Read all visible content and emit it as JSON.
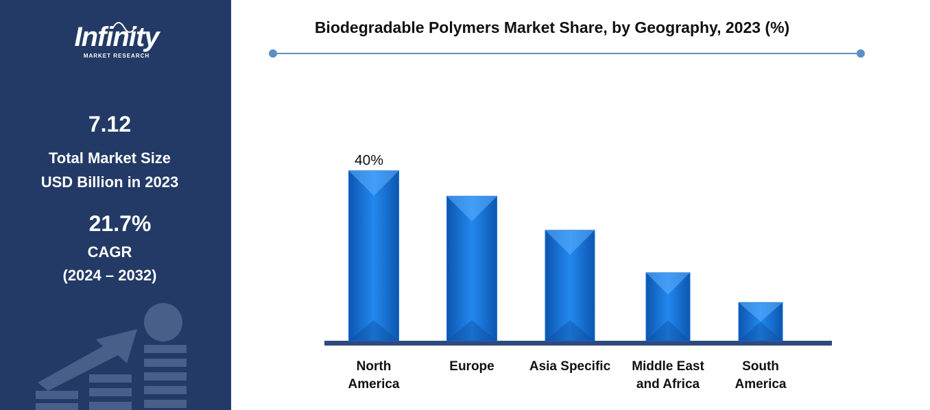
{
  "sidebar": {
    "logo": "Infinity",
    "logo_tagline": "MARKET RESEARCH",
    "market_size": "7.12",
    "market_size_label": "Total Market Size",
    "market_size_unit": "USD Billion in 2023",
    "cagr": "21.7%",
    "cagr_label": "CAGR",
    "cagr_period": "(2024 – 2032)"
  },
  "chart_data": {
    "type": "bar",
    "title": "Biodegradable Polymers Market Share, by Geography, 2023 (%)",
    "categories": [
      "North America",
      "Europe",
      "Asia Specific",
      "Middle East and Africa",
      "South America"
    ],
    "values": [
      40,
      34,
      26,
      16,
      9
    ],
    "value_labels": [
      "40%",
      null,
      null,
      null,
      null
    ],
    "color": "#1a6fd4"
  }
}
